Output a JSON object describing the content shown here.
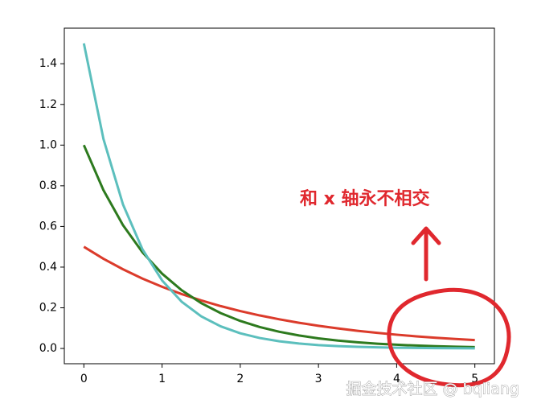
{
  "chart_data": {
    "type": "line",
    "x": [
      0,
      0.25,
      0.5,
      0.75,
      1,
      1.25,
      1.5,
      1.75,
      2,
      2.25,
      2.5,
      2.75,
      3,
      3.25,
      3.5,
      3.75,
      4,
      4.25,
      4.5,
      4.75,
      5
    ],
    "series": [
      {
        "color": "#db3b2b",
        "values": [
          0.5,
          0.4412,
          0.3894,
          0.3436,
          0.3033,
          0.2676,
          0.2362,
          0.2084,
          0.1839,
          0.1623,
          0.1433,
          0.1264,
          0.1116,
          0.0985,
          0.0869,
          0.0767,
          0.0677,
          0.0597,
          0.0527,
          0.0465,
          0.041
        ]
      },
      {
        "color": "#2d7a1e",
        "values": [
          1,
          0.7788,
          0.6065,
          0.4724,
          0.3679,
          0.2865,
          0.2231,
          0.1738,
          0.1353,
          0.1054,
          0.0821,
          0.0639,
          0.0498,
          0.0388,
          0.0302,
          0.0235,
          0.0183,
          0.0143,
          0.0111,
          0.0087,
          0.0067
        ]
      },
      {
        "color": "#5cbfbd",
        "values": [
          1.5,
          1.0309,
          0.7085,
          0.487,
          0.3347,
          0.2301,
          0.1581,
          0.1087,
          0.0747,
          0.0513,
          0.0353,
          0.0243,
          0.0167,
          0.0114,
          0.0079,
          0.0054,
          0.0037,
          0.0026,
          0.0018,
          0.0012,
          0.0008
        ]
      }
    ],
    "xlim": [
      -0.25,
      5.25
    ],
    "ylim": [
      -0.075,
      1.575
    ],
    "xticks": [
      0,
      1,
      2,
      3,
      4,
      5
    ],
    "yticks": [
      {
        "value": 0,
        "label": "0.0"
      },
      0.2,
      0.4,
      0.6,
      0.8,
      {
        "value": 1,
        "label": "1.0"
      },
      1.2,
      1.4
    ],
    "annotation": "和 x 轴永不相交",
    "watermark": "掘金技术社区 @ bqliang"
  }
}
